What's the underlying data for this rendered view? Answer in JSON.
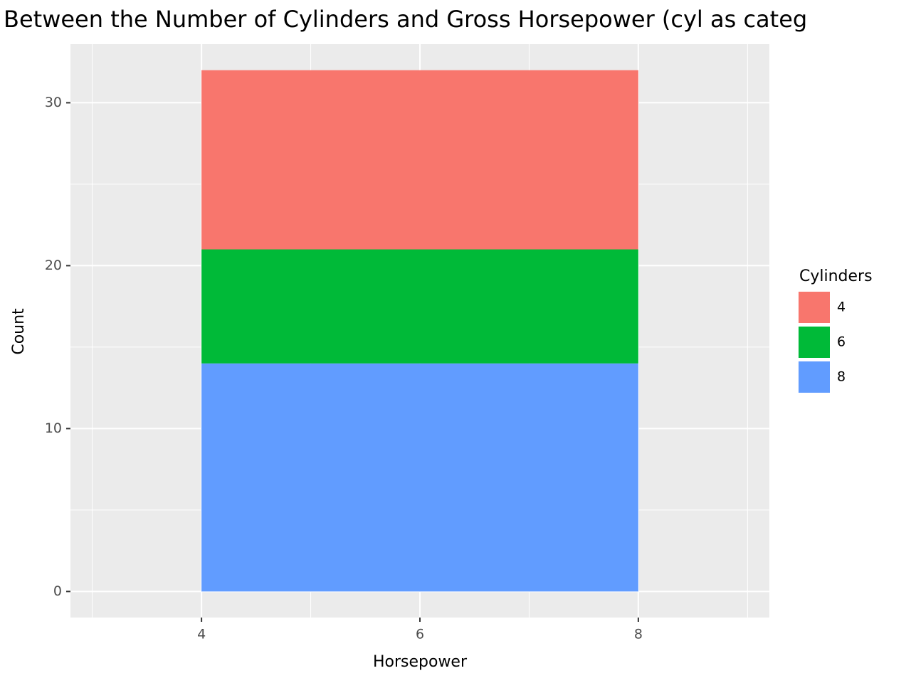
{
  "chart_data": {
    "type": "histogram",
    "title": "Between the Number of Cylinders and Gross Horsepower (cyl as categ",
    "x_label": "Horsepower",
    "y_label": "Count",
    "bins": [
      4,
      8
    ],
    "series": [
      {
        "name": "4",
        "color": "#F8766D",
        "values": [
          11
        ]
      },
      {
        "name": "6",
        "color": "#00BA38",
        "values": [
          7
        ]
      },
      {
        "name": "8",
        "color": "#619CFF",
        "values": [
          14
        ]
      }
    ],
    "legend_title": "Cylinders",
    "legend": "right",
    "xlim": [
      2.8,
      9.2
    ],
    "xticks": [
      4,
      6,
      8
    ],
    "x_minor_ticks": [
      3,
      5,
      7,
      9
    ],
    "ylim": [
      -1.6,
      33.6
    ],
    "yticks": [
      0,
      10,
      20,
      30
    ],
    "y_minor_ticks": [
      5,
      15,
      25
    ],
    "grid": true
  }
}
